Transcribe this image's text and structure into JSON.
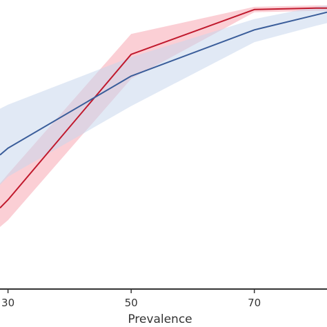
{
  "chart_data": {
    "type": "line",
    "title": "",
    "xlabel": "Prevalence",
    "ylabel": "",
    "xticks": [
      "30",
      "50",
      "70"
    ],
    "xlim": [
      28.7,
      81.8
    ],
    "ylim": [
      0,
      1
    ],
    "grid": false,
    "series": [
      {
        "color": "#c0192d",
        "band_color": "#f7a7b3",
        "x": [
          28.7,
          30,
          50,
          70,
          80,
          81.8
        ],
        "y": [
          0.235,
          0.265,
          0.8,
          0.965,
          0.97,
          0.97
        ],
        "lower": [
          0.165,
          0.19,
          0.71,
          0.955,
          0.96,
          0.96
        ],
        "upper": [
          0.325,
          0.36,
          0.875,
          0.975,
          0.98,
          0.98
        ]
      },
      {
        "color": "#3a5d9a",
        "band_color": "#c9d7ec",
        "x": [
          28.7,
          30,
          50,
          70,
          80,
          81.8
        ],
        "y": [
          0.43,
          0.455,
          0.72,
          0.89,
          0.945,
          0.955
        ],
        "lower": [
          0.32,
          0.35,
          0.61,
          0.845,
          0.905,
          0.915
        ],
        "upper": [
          0.6,
          0.615,
          0.79,
          0.93,
          0.975,
          0.98
        ]
      }
    ]
  }
}
